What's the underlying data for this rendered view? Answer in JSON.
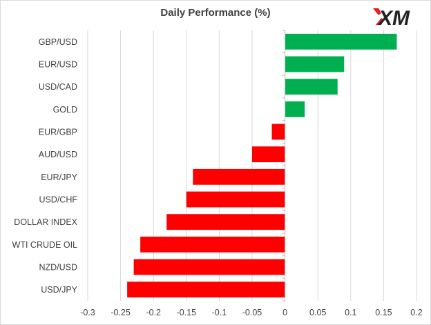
{
  "brand": {
    "logo_text": "XM",
    "logo_accent": "#e31e24",
    "logo_dark": "#222222"
  },
  "chart_data": {
    "type": "bar",
    "orientation": "horizontal",
    "title": "Daily Performance (%)",
    "categories": [
      "GBP/USD",
      "EUR/USD",
      "USD/CAD",
      "GOLD",
      "EUR/GBP",
      "AUD/USD",
      "EUR/JPY",
      "USD/CHF",
      "DOLLAR INDEX",
      "WTI CRUDE OIL",
      "NZD/USD",
      "USD/JPY"
    ],
    "values": [
      0.17,
      0.09,
      0.08,
      0.03,
      -0.02,
      -0.05,
      -0.14,
      -0.15,
      -0.18,
      -0.22,
      -0.23,
      -0.24
    ],
    "xlim": [
      -0.3,
      0.2
    ],
    "xticks": [
      -0.3,
      -0.25,
      -0.2,
      -0.15,
      -0.1,
      -0.05,
      0,
      0.05,
      0.1,
      0.15,
      0.2
    ],
    "xtick_labels": [
      "-0.3",
      "-0.25",
      "-0.2",
      "-0.15",
      "-0.1",
      "-0.05",
      "0",
      "0.05",
      "0.1",
      "0.15",
      "0.2"
    ],
    "grid": true,
    "colors": {
      "positive": "#00b050",
      "negative": "#ff0000",
      "grid": "#d9d9d9",
      "axis": "#bfbfbf"
    }
  }
}
